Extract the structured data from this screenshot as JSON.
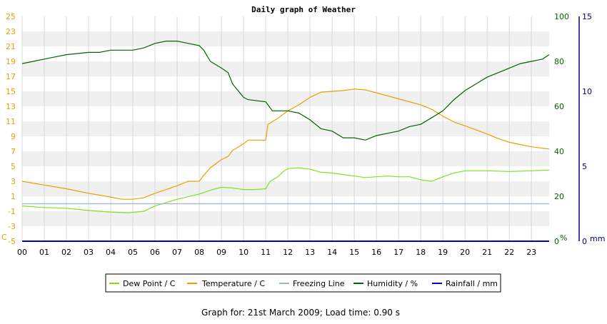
{
  "chart_data": {
    "type": "line",
    "title": "Daily graph of Weather",
    "footer": "Graph for: 21st March 2009; Load time: 0.90 s",
    "x_ticks": [
      "00",
      "01",
      "02",
      "03",
      "04",
      "05",
      "06",
      "07",
      "08",
      "09",
      "10",
      "11",
      "12",
      "13",
      "14",
      "15",
      "16",
      "17",
      "18",
      "19",
      "20",
      "21",
      "22",
      "23"
    ],
    "xlim": [
      0,
      23.8
    ],
    "axes": {
      "left": {
        "unit": "C",
        "ylim": [
          -5,
          25
        ],
        "ticks": [
          -5,
          -3,
          -1,
          1,
          3,
          5,
          7,
          9,
          11,
          13,
          15,
          17,
          19,
          21,
          23,
          25
        ],
        "color": "#e8a000"
      },
      "right1": {
        "unit": "%",
        "ylim": [
          0,
          100
        ],
        "ticks": [
          0,
          20,
          40,
          60,
          80,
          100
        ],
        "color": "#006400"
      },
      "right2": {
        "unit": "mm",
        "ylim": [
          0,
          15
        ],
        "ticks": [
          0,
          5,
          10,
          15
        ],
        "color": "#00008b"
      }
    },
    "legend": [
      "Dew Point / C",
      "Temperature / C",
      "Freezing Line",
      "Humidity / %",
      "Rainfall / mm"
    ],
    "series": [
      {
        "name": "Dew Point / C",
        "axis": "left",
        "color": "#80e020",
        "points": [
          [
            0,
            -0.3
          ],
          [
            1,
            -0.5
          ],
          [
            2,
            -0.6
          ],
          [
            3,
            -0.9
          ],
          [
            4,
            -1.1
          ],
          [
            4.8,
            -1.2
          ],
          [
            5.5,
            -1.0
          ],
          [
            6,
            -0.3
          ],
          [
            7,
            0.6
          ],
          [
            8,
            1.3
          ],
          [
            8.5,
            1.8
          ],
          [
            9,
            2.2
          ],
          [
            9.5,
            2.1
          ],
          [
            10,
            1.9
          ],
          [
            10.5,
            1.9
          ],
          [
            11,
            2.0
          ],
          [
            11.2,
            3.0
          ],
          [
            11.5,
            3.5
          ],
          [
            11.8,
            4.3
          ],
          [
            12,
            4.7
          ],
          [
            12.5,
            4.8
          ],
          [
            13,
            4.6
          ],
          [
            13.5,
            4.2
          ],
          [
            14,
            4.1
          ],
          [
            14.5,
            3.9
          ],
          [
            15,
            3.7
          ],
          [
            15.5,
            3.5
          ],
          [
            16,
            3.6
          ],
          [
            16.5,
            3.7
          ],
          [
            17,
            3.6
          ],
          [
            17.5,
            3.6
          ],
          [
            18,
            3.2
          ],
          [
            18.5,
            3.0
          ],
          [
            19,
            3.6
          ],
          [
            19.5,
            4.1
          ],
          [
            20,
            4.4
          ],
          [
            21,
            4.4
          ],
          [
            22,
            4.3
          ],
          [
            23,
            4.4
          ],
          [
            23.8,
            4.5
          ]
        ]
      },
      {
        "name": "Temperature / C",
        "axis": "left",
        "color": "#e8a000",
        "points": [
          [
            0,
            3.0
          ],
          [
            1,
            2.5
          ],
          [
            2,
            2.0
          ],
          [
            3,
            1.4
          ],
          [
            4,
            0.9
          ],
          [
            4.5,
            0.6
          ],
          [
            5,
            0.6
          ],
          [
            5.5,
            0.8
          ],
          [
            6,
            1.4
          ],
          [
            6.5,
            1.9
          ],
          [
            7,
            2.4
          ],
          [
            7.5,
            3.0
          ],
          [
            8,
            3.0
          ],
          [
            8.2,
            3.8
          ],
          [
            8.5,
            4.8
          ],
          [
            9,
            5.9
          ],
          [
            9.3,
            6.3
          ],
          [
            9.5,
            7.1
          ],
          [
            10,
            8.0
          ],
          [
            10.2,
            8.5
          ],
          [
            11,
            8.5
          ],
          [
            11.1,
            10.6
          ],
          [
            11.5,
            11.3
          ],
          [
            12,
            12.4
          ],
          [
            12.5,
            13.2
          ],
          [
            13,
            14.2
          ],
          [
            13.5,
            14.9
          ],
          [
            14,
            15.0
          ],
          [
            14.5,
            15.1
          ],
          [
            15,
            15.3
          ],
          [
            15.5,
            15.2
          ],
          [
            16,
            14.8
          ],
          [
            17,
            14.0
          ],
          [
            18,
            13.2
          ],
          [
            18.5,
            12.6
          ],
          [
            19,
            11.7
          ],
          [
            19.5,
            10.9
          ],
          [
            20,
            10.4
          ],
          [
            21,
            9.3
          ],
          [
            21.5,
            8.7
          ],
          [
            22,
            8.2
          ],
          [
            23,
            7.6
          ],
          [
            23.8,
            7.3
          ]
        ]
      },
      {
        "name": "Freezing Line",
        "axis": "left",
        "color": "#a0b4cc",
        "points": [
          [
            0,
            0
          ],
          [
            23.8,
            0
          ]
        ]
      },
      {
        "name": "Humidity / %",
        "axis": "right1",
        "color": "#006400",
        "points": [
          [
            0,
            79
          ],
          [
            0.5,
            80
          ],
          [
            1,
            81
          ],
          [
            1.5,
            82
          ],
          [
            2,
            83
          ],
          [
            3,
            84
          ],
          [
            3.5,
            84
          ],
          [
            4,
            85
          ],
          [
            5,
            85
          ],
          [
            5.5,
            86
          ],
          [
            6,
            88
          ],
          [
            6.5,
            89
          ],
          [
            7,
            89
          ],
          [
            7.5,
            88
          ],
          [
            8,
            87
          ],
          [
            8.2,
            85
          ],
          [
            8.5,
            80
          ],
          [
            9,
            77
          ],
          [
            9.3,
            75
          ],
          [
            9.5,
            70
          ],
          [
            10,
            64
          ],
          [
            10.2,
            63
          ],
          [
            11,
            62
          ],
          [
            11.3,
            58
          ],
          [
            11.7,
            58
          ],
          [
            12,
            58
          ],
          [
            12.5,
            57
          ],
          [
            13,
            54
          ],
          [
            13.5,
            50
          ],
          [
            14,
            49
          ],
          [
            14.5,
            46
          ],
          [
            15,
            46
          ],
          [
            15.5,
            45
          ],
          [
            16,
            47
          ],
          [
            16.5,
            48
          ],
          [
            17,
            49
          ],
          [
            17.5,
            51
          ],
          [
            18,
            52
          ],
          [
            18.5,
            55
          ],
          [
            19,
            58
          ],
          [
            19.5,
            63
          ],
          [
            20,
            67
          ],
          [
            20.5,
            70
          ],
          [
            21,
            73
          ],
          [
            21.5,
            75
          ],
          [
            22,
            77
          ],
          [
            22.5,
            79
          ],
          [
            23,
            80
          ],
          [
            23.5,
            81
          ],
          [
            23.8,
            83
          ]
        ]
      },
      {
        "name": "Rainfall / mm",
        "axis": "right2",
        "color": "#0000c8",
        "points": [
          [
            0,
            0
          ],
          [
            23.8,
            0
          ]
        ]
      }
    ]
  }
}
